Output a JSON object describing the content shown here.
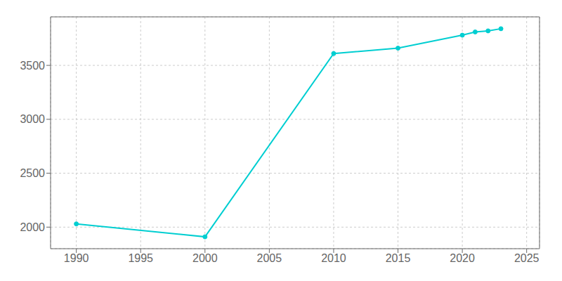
{
  "chart_data": {
    "type": "line",
    "x": [
      1990,
      2000,
      2010,
      2015,
      2020,
      2021,
      2022,
      2023
    ],
    "values": [
      2030,
      1910,
      3610,
      3660,
      3780,
      3810,
      3820,
      3840
    ],
    "color": "#00CED1",
    "marker": "circle",
    "xlim": [
      1988,
      2026
    ],
    "ylim": [
      1800,
      3950
    ],
    "xticks": [
      1990,
      1995,
      2000,
      2005,
      2010,
      2015,
      2020,
      2025
    ],
    "yticks": [
      2000,
      2500,
      3000,
      3500
    ],
    "grid": true
  }
}
